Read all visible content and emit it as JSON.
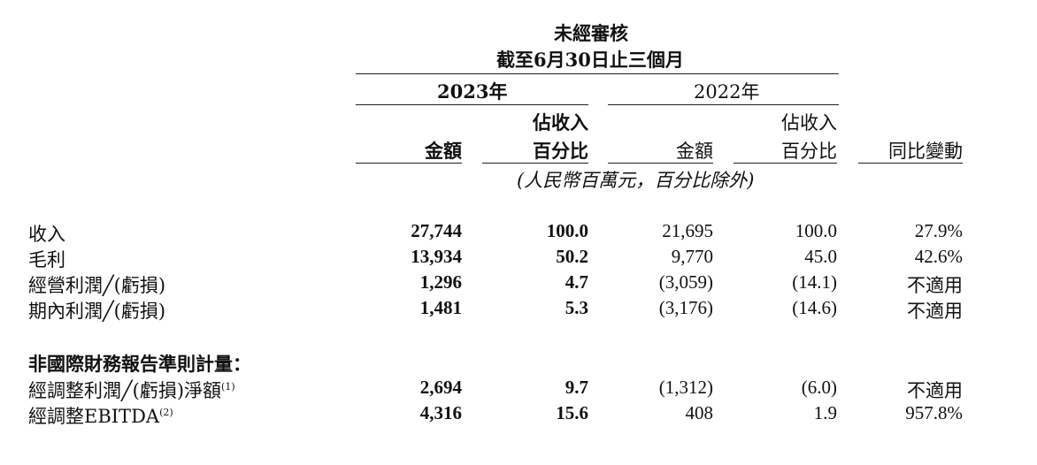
{
  "header": {
    "audit": "未經審核",
    "period": "截至6月30日止三個月",
    "year_2023": "2023年",
    "year_2022": "2022年",
    "col_amount_2023": "金額",
    "col_pct_2023_l1": "佔收入",
    "col_pct_2023_l2": "百分比",
    "col_amount_2022": "金額",
    "col_pct_2022_l1": "佔收入",
    "col_pct_2022_l2": "百分比",
    "col_yoy": "同比變動",
    "units": "(人民幣百萬元，百分比除外)"
  },
  "rows": [
    {
      "label": "收入",
      "amt_2023": "27,744",
      "pct_2023": "100.0",
      "amt_2022": "21,695",
      "pct_2022": "100.0",
      "yoy": "27.9%"
    },
    {
      "label": "毛利",
      "amt_2023": "13,934",
      "pct_2023": "50.2",
      "amt_2022": "9,770",
      "pct_2022": "45.0",
      "yoy": "42.6%"
    },
    {
      "label": "經營利潤╱(虧損)",
      "amt_2023": "1,296",
      "pct_2023": "4.7",
      "amt_2022": "(3,059)",
      "pct_2022": "(14.1)",
      "yoy": "不適用"
    },
    {
      "label": "期內利潤╱(虧損)",
      "amt_2023": "1,481",
      "pct_2023": "5.3",
      "amt_2022": "(3,176)",
      "pct_2022": "(14.6)",
      "yoy": "不適用"
    }
  ],
  "non_ifrs": {
    "heading": "非國際財務報告準則計量：",
    "rows": [
      {
        "label": "經調整利潤╱(虧損)淨額",
        "note": "(1)",
        "amt_2023": "2,694",
        "pct_2023": "9.7",
        "amt_2022": "(1,312)",
        "pct_2022": "(6.0)",
        "yoy": "不適用"
      },
      {
        "label": "經調整EBITDA",
        "note": "(2)",
        "amt_2023": "4,316",
        "pct_2023": "15.6",
        "amt_2022": "408",
        "pct_2022": "1.9",
        "yoy": "957.8%"
      }
    ]
  }
}
